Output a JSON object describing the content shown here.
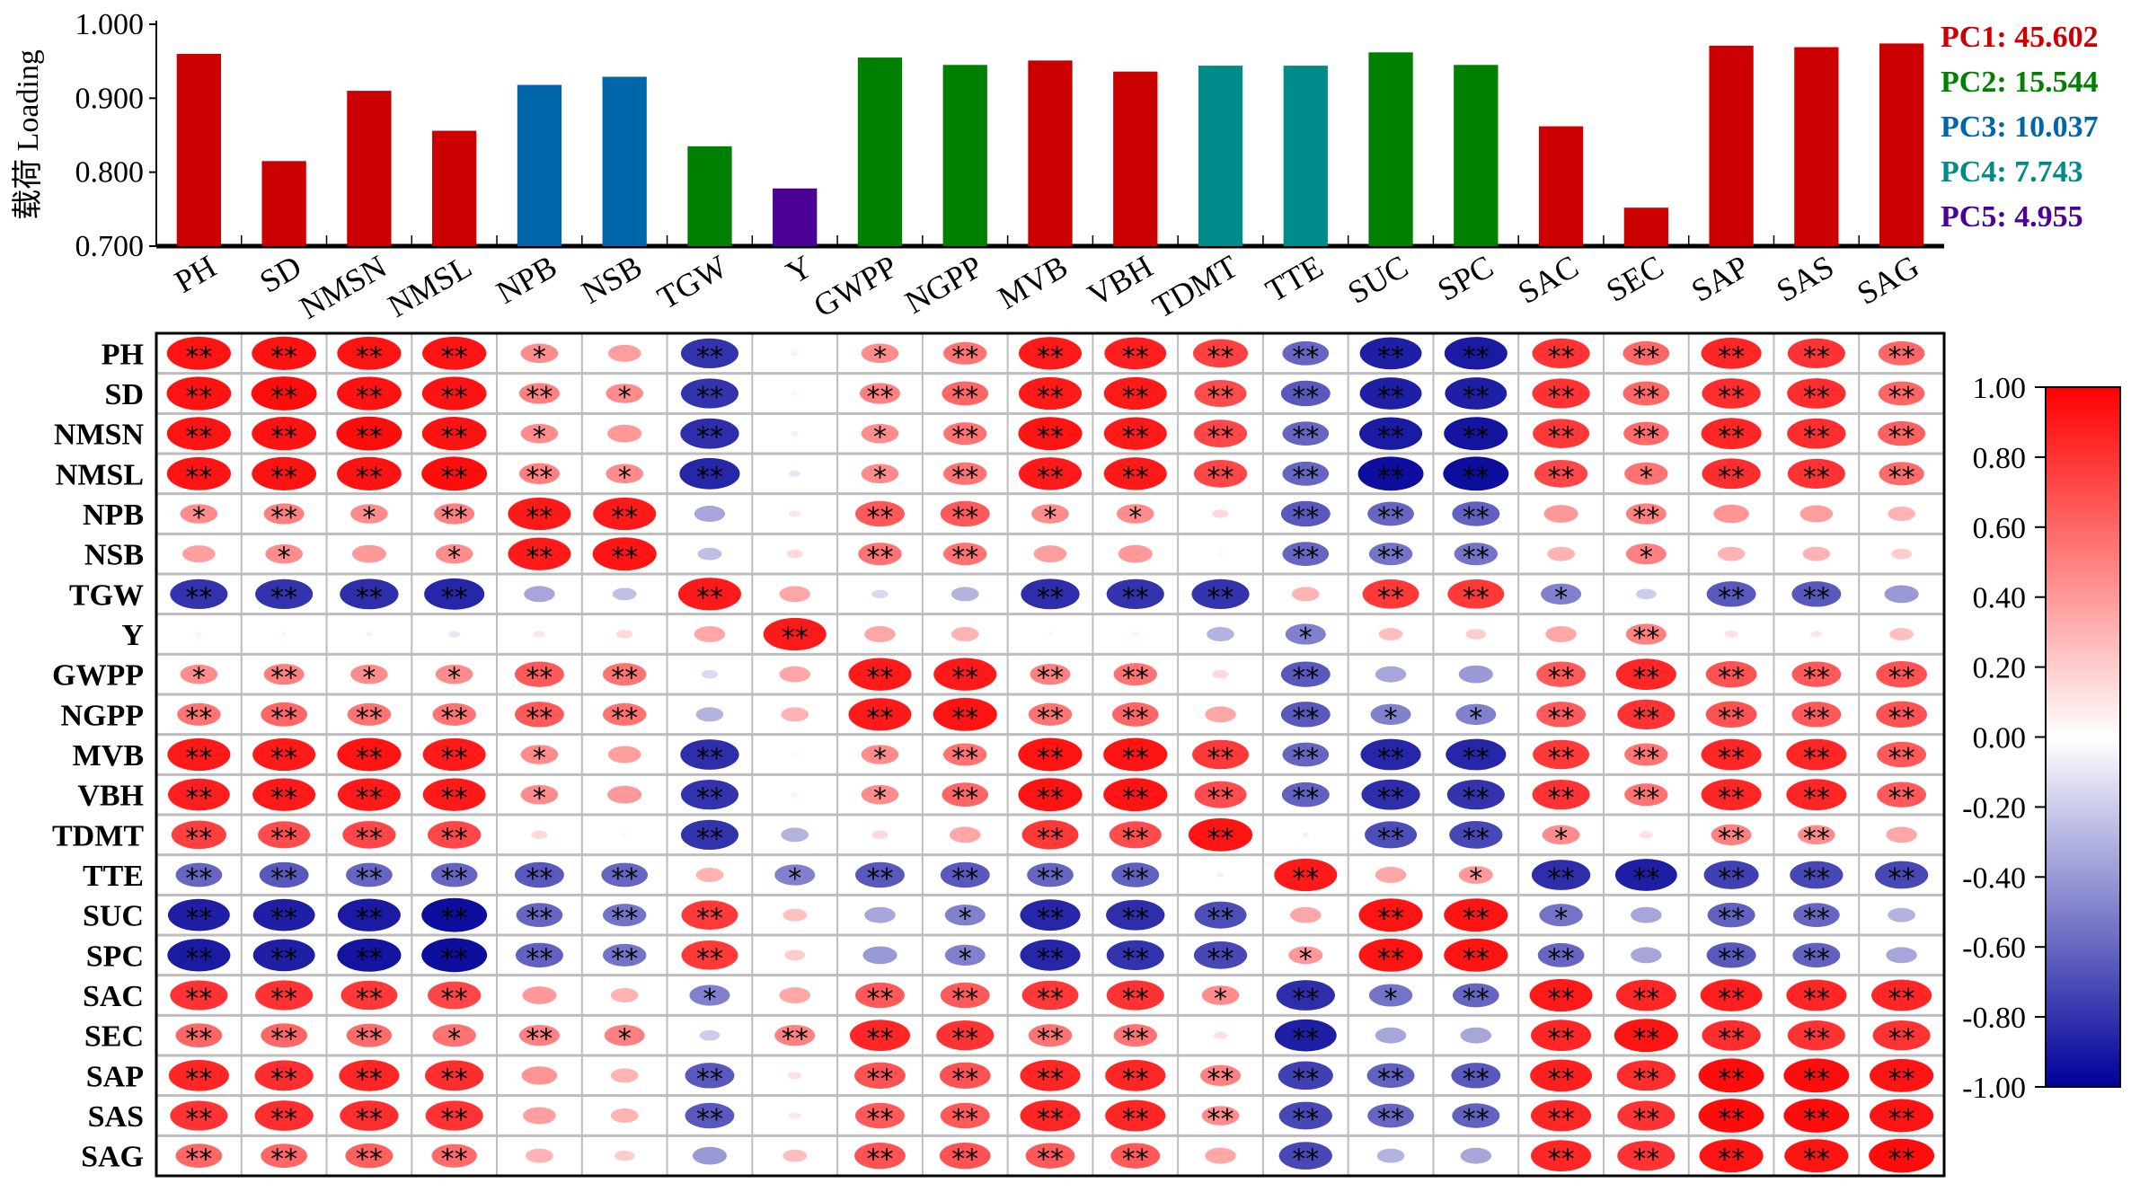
{
  "chart_data": [
    {
      "type": "bar",
      "ylabel": "载荷 Loading",
      "ylim": [
        0.7,
        1.0
      ],
      "yticks": [
        "0.700",
        "0.800",
        "0.900",
        "1.000"
      ],
      "categories": [
        "PH",
        "SD",
        "NMSN",
        "NMSL",
        "NPB",
        "NSB",
        "TGW",
        "Y",
        "GWPP",
        "NGPP",
        "MVB",
        "VBH",
        "TDMT",
        "TTE",
        "SUC",
        "SPC",
        "SAC",
        "SEC",
        "SAP",
        "SAS",
        "SAG"
      ],
      "values": [
        0.96,
        0.815,
        0.91,
        0.856,
        0.918,
        0.929,
        0.835,
        0.778,
        0.955,
        0.945,
        0.951,
        0.936,
        0.944,
        0.944,
        0.962,
        0.945,
        0.862,
        0.752,
        0.971,
        0.969,
        0.974
      ],
      "component": [
        "PC1",
        "PC1",
        "PC1",
        "PC1",
        "PC3",
        "PC3",
        "PC2",
        "PC5",
        "PC2",
        "PC2",
        "PC1",
        "PC1",
        "PC4",
        "PC4",
        "PC2",
        "PC2",
        "PC1",
        "PC1",
        "PC1",
        "PC1",
        "PC1"
      ],
      "legend_position": "right",
      "legend": [
        {
          "key": "PC1",
          "label": "PC1: 45.602",
          "color": "#cc0000"
        },
        {
          "key": "PC2",
          "label": "PC2: 15.544",
          "color": "#008000"
        },
        {
          "key": "PC3",
          "label": "PC3: 10.037",
          "color": "#0066aa"
        },
        {
          "key": "PC4",
          "label": "PC4: 7.743",
          "color": "#008b8b"
        },
        {
          "key": "PC5",
          "label": "PC5: 4.955",
          "color": "#4b0096"
        }
      ]
    },
    {
      "type": "heatmap",
      "labels": [
        "PH",
        "SD",
        "NMSN",
        "NMSL",
        "NPB",
        "NSB",
        "TGW",
        "Y",
        "GWPP",
        "NGPP",
        "MVB",
        "VBH",
        "TDMT",
        "TTE",
        "SUC",
        "SPC",
        "SAC",
        "SEC",
        "SAP",
        "SAS",
        "SAG"
      ],
      "colorbar": {
        "range": [
          -1.0,
          1.0
        ],
        "ticks": [
          "1.00",
          "0.80",
          "0.60",
          "0.40",
          "0.20",
          "0.00",
          "-0.20",
          "-0.40",
          "-0.60",
          "-0.80",
          "-1.00"
        ],
        "pos_color": "#ff0000",
        "neg_color": "#000099"
      },
      "grid": true,
      "values": [
        [
          0.92,
          0.93,
          0.92,
          0.92,
          0.45,
          0.38,
          -0.8,
          0.05,
          0.45,
          0.55,
          0.9,
          0.88,
          0.75,
          -0.6,
          -0.88,
          -0.9,
          0.8,
          0.6,
          0.85,
          0.8,
          0.6
        ],
        [
          0.93,
          0.95,
          0.93,
          0.93,
          0.5,
          0.45,
          -0.8,
          0.03,
          0.5,
          0.6,
          0.9,
          0.9,
          0.7,
          -0.65,
          -0.88,
          -0.88,
          0.8,
          0.6,
          0.82,
          0.82,
          0.6
        ],
        [
          0.92,
          0.93,
          0.95,
          0.93,
          0.45,
          0.4,
          -0.82,
          -0.05,
          0.45,
          0.55,
          0.92,
          0.9,
          0.72,
          -0.6,
          -0.9,
          -0.92,
          0.78,
          0.58,
          0.85,
          0.82,
          0.62
        ],
        [
          0.92,
          0.93,
          0.93,
          0.95,
          0.5,
          0.45,
          -0.85,
          -0.1,
          0.45,
          0.55,
          0.9,
          0.9,
          0.72,
          -0.6,
          -0.95,
          -0.95,
          0.72,
          0.55,
          0.82,
          0.8,
          0.58
        ],
        [
          0.45,
          0.5,
          0.45,
          0.5,
          0.9,
          0.9,
          -0.35,
          0.1,
          0.65,
          0.65,
          0.45,
          0.45,
          0.15,
          -0.65,
          -0.6,
          -0.62,
          0.4,
          0.5,
          0.42,
          0.38,
          0.3
        ],
        [
          0.38,
          0.45,
          0.4,
          0.45,
          0.9,
          0.92,
          -0.25,
          0.15,
          0.55,
          0.55,
          0.38,
          0.4,
          0.03,
          -0.6,
          -0.55,
          -0.55,
          0.3,
          0.5,
          0.3,
          0.3,
          0.2
        ],
        [
          -0.8,
          -0.8,
          -0.82,
          -0.85,
          -0.35,
          -0.25,
          0.9,
          0.35,
          -0.15,
          -0.3,
          -0.82,
          -0.8,
          -0.8,
          0.3,
          0.78,
          0.78,
          -0.5,
          -0.2,
          -0.65,
          -0.65,
          -0.4
        ],
        [
          0.05,
          0.03,
          -0.05,
          -0.1,
          0.1,
          0.15,
          0.35,
          0.9,
          0.35,
          0.3,
          0.03,
          0.05,
          -0.3,
          -0.5,
          0.25,
          0.2,
          0.35,
          0.5,
          0.12,
          0.1,
          0.25
        ],
        [
          0.45,
          0.5,
          0.45,
          0.45,
          0.65,
          0.55,
          -0.15,
          0.35,
          0.9,
          0.9,
          0.5,
          0.55,
          0.15,
          -0.65,
          -0.35,
          -0.4,
          0.65,
          0.85,
          0.68,
          0.65,
          0.68
        ],
        [
          0.55,
          0.6,
          0.55,
          0.55,
          0.65,
          0.55,
          -0.3,
          0.3,
          0.9,
          0.92,
          0.55,
          0.6,
          0.35,
          -0.65,
          -0.5,
          -0.5,
          0.65,
          0.8,
          0.68,
          0.65,
          0.68
        ],
        [
          0.9,
          0.9,
          0.92,
          0.9,
          0.45,
          0.38,
          -0.82,
          0.03,
          0.45,
          0.55,
          0.92,
          0.92,
          0.78,
          -0.6,
          -0.85,
          -0.85,
          0.78,
          0.55,
          0.85,
          0.85,
          0.65
        ],
        [
          0.88,
          0.9,
          0.9,
          0.9,
          0.45,
          0.4,
          -0.8,
          0.05,
          0.45,
          0.6,
          0.92,
          0.92,
          0.7,
          -0.62,
          -0.82,
          -0.8,
          0.8,
          0.55,
          0.85,
          0.85,
          0.65
        ],
        [
          0.75,
          0.7,
          0.72,
          0.72,
          0.15,
          0.03,
          -0.8,
          -0.3,
          0.15,
          0.35,
          0.78,
          0.7,
          0.92,
          -0.05,
          -0.7,
          -0.72,
          0.45,
          0.12,
          0.5,
          0.45,
          0.35
        ],
        [
          -0.6,
          -0.65,
          -0.6,
          -0.6,
          -0.65,
          -0.6,
          0.3,
          -0.5,
          -0.65,
          -0.65,
          -0.6,
          -0.62,
          -0.05,
          0.9,
          0.35,
          0.4,
          -0.82,
          -0.88,
          -0.75,
          -0.72,
          -0.72
        ],
        [
          -0.88,
          -0.88,
          -0.9,
          -0.95,
          -0.6,
          -0.55,
          0.78,
          0.25,
          -0.35,
          -0.5,
          -0.85,
          -0.82,
          -0.7,
          0.35,
          0.92,
          0.92,
          -0.55,
          -0.35,
          -0.62,
          -0.6,
          -0.3
        ],
        [
          -0.9,
          -0.88,
          -0.92,
          -0.95,
          -0.62,
          -0.55,
          0.78,
          0.2,
          -0.4,
          -0.5,
          -0.85,
          -0.8,
          -0.72,
          0.4,
          0.92,
          0.92,
          -0.6,
          -0.35,
          -0.65,
          -0.62,
          -0.35
        ],
        [
          0.8,
          0.8,
          0.78,
          0.72,
          0.4,
          0.3,
          -0.5,
          0.35,
          0.65,
          0.65,
          0.78,
          0.8,
          0.45,
          -0.82,
          -0.55,
          -0.6,
          0.9,
          0.85,
          0.88,
          0.85,
          0.85
        ],
        [
          0.6,
          0.6,
          0.58,
          0.55,
          0.5,
          0.5,
          -0.2,
          0.5,
          0.85,
          0.8,
          0.55,
          0.55,
          0.12,
          -0.88,
          -0.35,
          -0.35,
          0.85,
          0.92,
          0.82,
          0.8,
          0.8
        ],
        [
          0.85,
          0.82,
          0.85,
          0.82,
          0.42,
          0.3,
          -0.65,
          0.12,
          0.68,
          0.68,
          0.85,
          0.85,
          0.5,
          -0.75,
          -0.62,
          -0.65,
          0.88,
          0.82,
          0.95,
          0.95,
          0.92
        ],
        [
          0.8,
          0.82,
          0.82,
          0.8,
          0.38,
          0.3,
          -0.65,
          0.1,
          0.65,
          0.65,
          0.85,
          0.85,
          0.45,
          -0.72,
          -0.6,
          -0.62,
          0.85,
          0.8,
          0.95,
          0.95,
          0.92
        ],
        [
          0.6,
          0.6,
          0.62,
          0.58,
          0.3,
          0.2,
          -0.4,
          0.25,
          0.68,
          0.68,
          0.65,
          0.65,
          0.35,
          -0.72,
          -0.3,
          -0.35,
          0.85,
          0.8,
          0.92,
          0.92,
          0.95
        ]
      ],
      "significance": [
        [
          "**",
          "**",
          "**",
          "**",
          "*",
          "",
          "**",
          "",
          "*",
          "**",
          "**",
          "**",
          "**",
          "**",
          "**",
          "**",
          "**",
          "**",
          "**",
          "**",
          "**"
        ],
        [
          "**",
          "**",
          "**",
          "**",
          "**",
          "*",
          "**",
          "",
          "**",
          "**",
          "**",
          "**",
          "**",
          "**",
          "**",
          "**",
          "**",
          "**",
          "**",
          "**",
          "**"
        ],
        [
          "**",
          "**",
          "**",
          "**",
          "*",
          "",
          "**",
          "",
          "*",
          "**",
          "**",
          "**",
          "**",
          "**",
          "**",
          "**",
          "**",
          "**",
          "**",
          "**",
          "**"
        ],
        [
          "**",
          "**",
          "**",
          "**",
          "**",
          "*",
          "**",
          "",
          "*",
          "**",
          "**",
          "**",
          "**",
          "**",
          "**",
          "**",
          "**",
          "*",
          "**",
          "**",
          "**"
        ],
        [
          "*",
          "**",
          "*",
          "**",
          "**",
          "**",
          "",
          "",
          "**",
          "**",
          "*",
          "*",
          "",
          "**",
          "**",
          "**",
          "",
          "**",
          "",
          "",
          ""
        ],
        [
          "",
          "*",
          "",
          "*",
          "**",
          "**",
          "",
          "",
          "**",
          "**",
          "",
          "",
          "",
          "**",
          "**",
          "**",
          "",
          "*",
          "",
          "",
          ""
        ],
        [
          "**",
          "**",
          "**",
          "**",
          "",
          "",
          "**",
          "",
          "",
          "",
          "**",
          "**",
          "**",
          "",
          "**",
          "**",
          "*",
          "",
          "**",
          "**",
          ""
        ],
        [
          "",
          "",
          "",
          "",
          "",
          "",
          "",
          "**",
          "",
          "",
          "",
          "",
          "",
          "*",
          "",
          "",
          "",
          "**",
          "",
          "",
          ""
        ],
        [
          "*",
          "**",
          "*",
          "*",
          "**",
          "**",
          "",
          "",
          "**",
          "**",
          "**",
          "**",
          "",
          "**",
          "",
          "",
          "**",
          "**",
          "**",
          "**",
          "**"
        ],
        [
          "**",
          "**",
          "**",
          "**",
          "**",
          "**",
          "",
          "",
          "**",
          "**",
          "**",
          "**",
          "",
          "**",
          "*",
          "*",
          "**",
          "**",
          "**",
          "**",
          "**"
        ],
        [
          "**",
          "**",
          "**",
          "**",
          "*",
          "",
          "**",
          "",
          "*",
          "**",
          "**",
          "**",
          "**",
          "**",
          "**",
          "**",
          "**",
          "**",
          "**",
          "**",
          "**"
        ],
        [
          "**",
          "**",
          "**",
          "**",
          "*",
          "",
          "**",
          "",
          "*",
          "**",
          "**",
          "**",
          "**",
          "**",
          "**",
          "**",
          "**",
          "**",
          "**",
          "**",
          "**"
        ],
        [
          "**",
          "**",
          "**",
          "**",
          "",
          "",
          "**",
          "",
          "",
          "",
          "**",
          "**",
          "**",
          "",
          "**",
          "**",
          "*",
          "",
          "**",
          "**",
          ""
        ],
        [
          "**",
          "**",
          "**",
          "**",
          "**",
          "**",
          "",
          "*",
          "**",
          "**",
          "**",
          "**",
          "",
          "**",
          "",
          "*",
          "**",
          "**",
          "**",
          "**",
          "**"
        ],
        [
          "**",
          "**",
          "**",
          "**",
          "**",
          "**",
          "**",
          "",
          "",
          "*",
          "**",
          "**",
          "**",
          "",
          "**",
          "**",
          "*",
          "",
          "**",
          "**",
          ""
        ],
        [
          "**",
          "**",
          "**",
          "**",
          "**",
          "**",
          "**",
          "",
          "",
          "*",
          "**",
          "**",
          "**",
          "*",
          "**",
          "**",
          "**",
          "",
          "**",
          "**",
          ""
        ],
        [
          "**",
          "**",
          "**",
          "**",
          "",
          "",
          "*",
          "",
          "**",
          "**",
          "**",
          "**",
          "*",
          "**",
          "*",
          "**",
          "**",
          "**",
          "**",
          "**",
          "**"
        ],
        [
          "**",
          "**",
          "**",
          "*",
          "**",
          "*",
          "",
          "**",
          "**",
          "**",
          "**",
          "**",
          "",
          "**",
          "",
          "",
          "**",
          "**",
          "**",
          "**",
          "**"
        ],
        [
          "**",
          "**",
          "**",
          "**",
          "",
          "",
          "**",
          "",
          "**",
          "**",
          "**",
          "**",
          "**",
          "**",
          "**",
          "**",
          "**",
          "**",
          "**",
          "**",
          "**"
        ],
        [
          "**",
          "**",
          "**",
          "**",
          "",
          "",
          "**",
          "",
          "**",
          "**",
          "**",
          "**",
          "**",
          "**",
          "**",
          "**",
          "**",
          "**",
          "**",
          "**",
          "**"
        ],
        [
          "**",
          "**",
          "**",
          "**",
          "",
          "",
          "",
          "",
          "**",
          "**",
          "**",
          "**",
          "",
          "**",
          "",
          "",
          "**",
          "**",
          "**",
          "**",
          "**"
        ]
      ]
    }
  ]
}
